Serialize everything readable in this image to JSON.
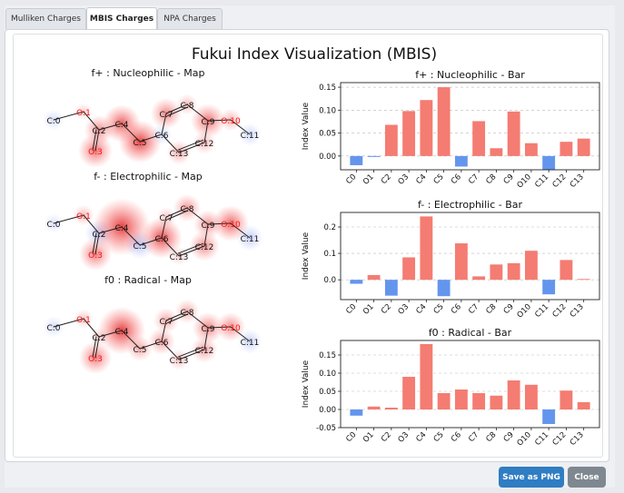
{
  "tabs": [
    "Mulliken Charges",
    "MBIS Charges",
    "NPA Charges"
  ],
  "active_tab": 1,
  "figure_title": "Fukui Index Visualization (MBIS)",
  "maps": [
    {
      "title": "f+ : Nucleophilic - Map",
      "weights": [
        -0.02,
        0.0,
        0.07,
        0.1,
        0.12,
        0.15,
        -0.02,
        0.08,
        0.02,
        0.1,
        0.03,
        -0.03,
        0.03,
        0.04
      ]
    },
    {
      "title": "f- : Electrophilic - Map",
      "weights": [
        -0.01,
        0.02,
        -0.06,
        0.09,
        0.24,
        -0.06,
        0.14,
        0.01,
        0.06,
        0.065,
        0.11,
        -0.05,
        0.075,
        0.005
      ]
    },
    {
      "title": "f0 : Radical - Map",
      "weights": [
        -0.02,
        0.01,
        0.005,
        0.09,
        0.18,
        0.045,
        0.055,
        0.045,
        0.04,
        0.08,
        0.07,
        -0.04,
        0.052,
        0.02
      ]
    }
  ],
  "atoms": [
    "C:0",
    "O:1",
    "C:2",
    "O:3",
    "C:4",
    "C:5",
    "C:6",
    "C:7",
    "C:8",
    "C:9",
    "O:10",
    "C:11",
    "C:12",
    "C:13"
  ],
  "buttons": {
    "save": "Save as PNG",
    "close": "Close"
  },
  "chart_data": [
    {
      "type": "bar",
      "title": "f+ : Nucleophilic - Bar",
      "ylabel": "Index Value",
      "categories": [
        "C0",
        "O1",
        "C2",
        "O3",
        "C4",
        "C5",
        "C6",
        "C7",
        "C8",
        "C9",
        "O10",
        "C11",
        "C12",
        "C13"
      ],
      "values": [
        -0.02,
        -0.002,
        0.068,
        0.098,
        0.122,
        0.15,
        -0.023,
        0.076,
        0.017,
        0.097,
        0.028,
        -0.03,
        0.031,
        0.038
      ],
      "ylim": [
        -0.03,
        0.16
      ],
      "yticks": [
        0.0,
        0.05,
        0.1,
        0.15
      ],
      "ytick_labels": [
        "0.00",
        "0.05",
        "0.10",
        "0.15"
      ],
      "grid": true,
      "colors": {
        "positive": "#f47c72",
        "negative": "#6495ed"
      }
    },
    {
      "type": "bar",
      "title": "f- : Electrophilic - Bar",
      "ylabel": "Index Value",
      "categories": [
        "C0",
        "O1",
        "C2",
        "O3",
        "C4",
        "C5",
        "C6",
        "C7",
        "C8",
        "C9",
        "O10",
        "C11",
        "C12",
        "C13"
      ],
      "values": [
        -0.015,
        0.018,
        -0.06,
        0.085,
        0.24,
        -0.062,
        0.138,
        0.013,
        0.058,
        0.063,
        0.11,
        -0.055,
        0.075,
        0.003
      ],
      "ylim": [
        -0.075,
        0.255
      ],
      "yticks": [
        0.0,
        0.1,
        0.2
      ],
      "ytick_labels": [
        "0.0",
        "0.1",
        "0.2"
      ],
      "grid": true,
      "colors": {
        "positive": "#f47c72",
        "negative": "#6495ed"
      }
    },
    {
      "type": "bar",
      "title": "f0 : Radical - Bar",
      "ylabel": "Index Value",
      "categories": [
        "C0",
        "O1",
        "C2",
        "O3",
        "C4",
        "C5",
        "C6",
        "C7",
        "C8",
        "C9",
        "O10",
        "C11",
        "C12",
        "C13"
      ],
      "values": [
        -0.017,
        0.008,
        0.005,
        0.09,
        0.18,
        0.045,
        0.055,
        0.045,
        0.038,
        0.08,
        0.068,
        -0.04,
        0.052,
        0.02
      ],
      "ylim": [
        -0.05,
        0.19
      ],
      "yticks": [
        -0.05,
        0.0,
        0.05,
        0.1,
        0.15
      ],
      "ytick_labels": [
        "-0.05",
        "0.00",
        "0.05",
        "0.10",
        "0.15"
      ],
      "grid": true,
      "colors": {
        "positive": "#f47c72",
        "negative": "#6495ed"
      }
    }
  ]
}
